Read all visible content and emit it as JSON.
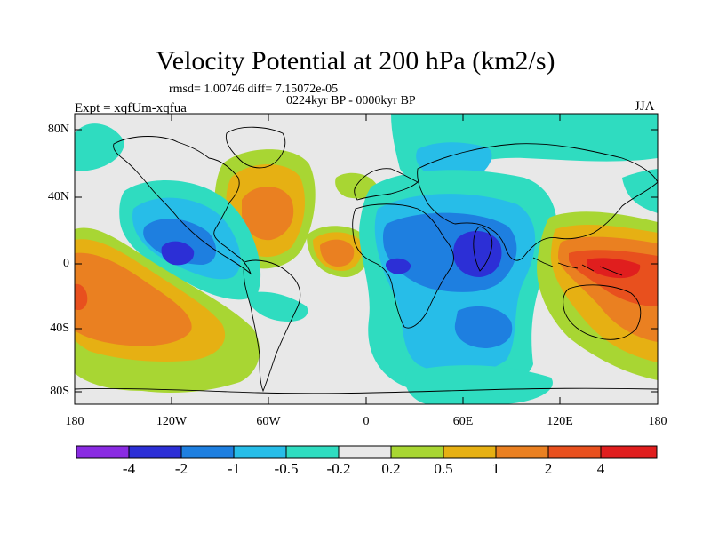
{
  "title": "Velocity Potential at 200 hPa (km2/s)",
  "stats": "rmsd= 1.00746 diff= 7.15072e-05",
  "period": "0224kyr BP - 0000kyr BP",
  "experiment": "Expt = xqfUm-xqfua",
  "season": "JJA",
  "axes": {
    "latitude_labels": [
      "80N",
      "40N",
      "0",
      "40S",
      "80S"
    ],
    "longitude_labels": [
      "180",
      "120W",
      "60W",
      "0",
      "60E",
      "120E",
      "180"
    ]
  },
  "colorbar": {
    "labels": [
      "-4",
      "-2",
      "-1",
      "-0.5",
      "-0.2",
      "0.2",
      "0.5",
      "1",
      "2",
      "4"
    ],
    "colors": [
      "#8a2be2",
      "#2c2fd6",
      "#1e7fe0",
      "#27bde8",
      "#2fdcc0",
      "#e8e8e8",
      "#a8d633",
      "#e6b013",
      "#ea8021",
      "#e8501e",
      "#e01e1e"
    ]
  },
  "map_colors": {
    "neutral": "#e8e8e8",
    "lightgreen": "#a8d633",
    "yellow": "#e6b013",
    "orange": "#ea8021",
    "darkorange": "#e8501e",
    "red": "#e01e1e",
    "teal": "#2fdcc0",
    "cyan": "#27bde8",
    "blue": "#1e7fe0",
    "darkblue": "#2c2fd6",
    "coast": "#000000"
  }
}
